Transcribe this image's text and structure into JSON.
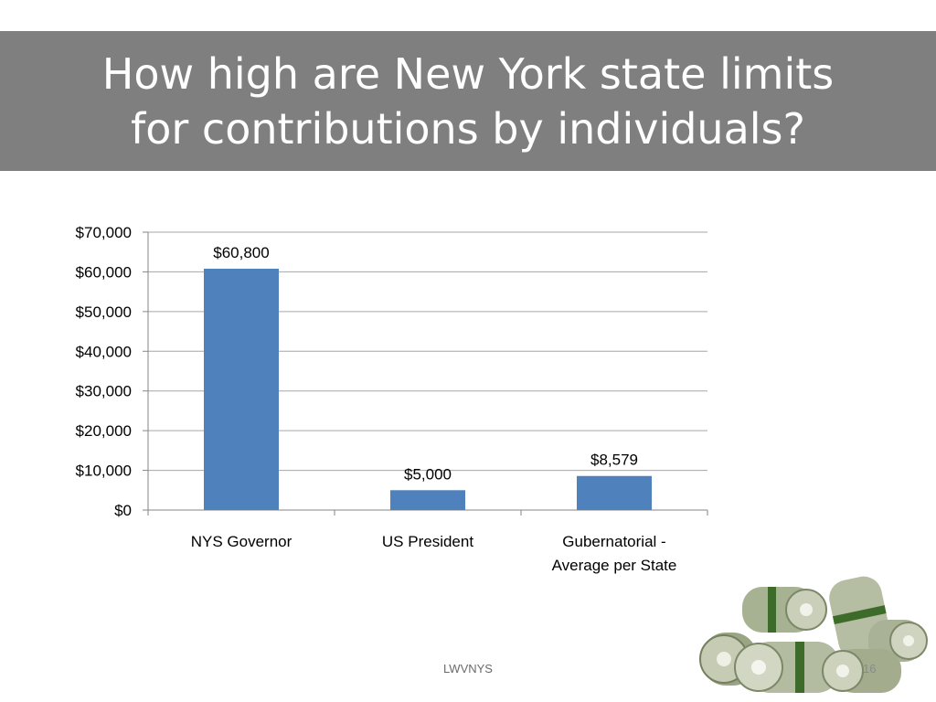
{
  "slide": {
    "title_line1": "How high are New York state limits",
    "title_line2": "for contributions by individuals?",
    "footer": "LWVNYS",
    "page_number": "16"
  },
  "colors": {
    "title_bar": "#7f7f7f",
    "bar": "#4f81bd",
    "gridline": "#a6a6a6"
  },
  "chart_data": {
    "type": "bar",
    "title": "",
    "xlabel": "",
    "ylabel": "",
    "categories": [
      [
        "NYS Governor"
      ],
      [
        "US President"
      ],
      [
        "Gubernatorial -",
        "Average per State"
      ]
    ],
    "values": [
      60800,
      5000,
      8579
    ],
    "data_labels": [
      "$60,800",
      "$5,000",
      "$8,579"
    ],
    "ylim": [
      0,
      70000
    ],
    "yticks": [
      0,
      10000,
      20000,
      30000,
      40000,
      50000,
      60000,
      70000
    ],
    "ytick_labels": [
      "$0",
      "$10,000",
      "$20,000",
      "$30,000",
      "$40,000",
      "$50,000",
      "$60,000",
      "$70,000"
    ],
    "grid": true,
    "legend": "none"
  }
}
